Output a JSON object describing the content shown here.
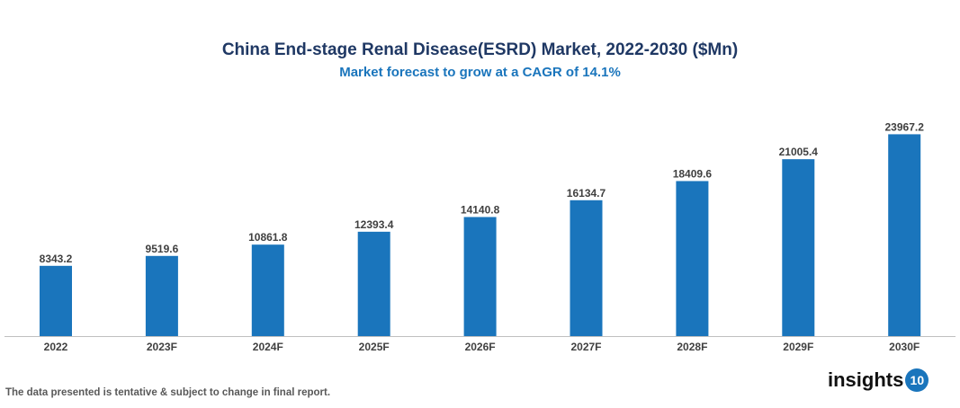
{
  "chart_data": {
    "type": "bar",
    "title": "China End-stage Renal Disease(ESRD) Market, 2022-2030 ($Mn)",
    "subtitle": "Market forecast to grow at a CAGR of 14.1%",
    "categories": [
      "2022",
      "2023F",
      "2024F",
      "2025F",
      "2026F",
      "2027F",
      "2028F",
      "2029F",
      "2030F"
    ],
    "values": [
      8343.2,
      9519.6,
      10861.8,
      12393.4,
      14140.8,
      16134.7,
      18409.6,
      21005.4,
      23967.2
    ],
    "value_labels": [
      "8343.2",
      "9519.6",
      "10861.8",
      "12393.4",
      "14140.8",
      "16134.7",
      "18409.6",
      "21005.4",
      "23967.2"
    ],
    "xlabel": "",
    "ylabel": "",
    "ylim": [
      0,
      24000
    ],
    "grid": false,
    "bar_color": "#1a75bc"
  },
  "footer": {
    "note": "The data presented is tentative & subject to change in final report."
  },
  "logo": {
    "text": "insights",
    "badge": "10"
  }
}
